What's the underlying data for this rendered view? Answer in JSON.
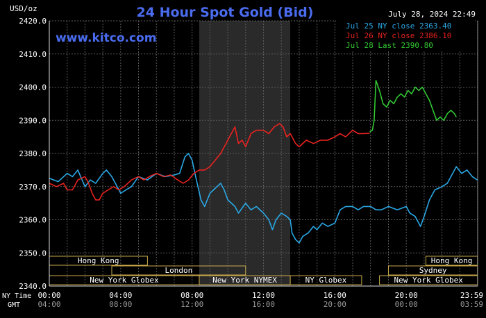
{
  "chart_data": {
    "type": "line",
    "title": "24 Hour Spot Gold (Bid)",
    "units_label": "USD/oz",
    "date_stamp": "July 28, 2024 22:49",
    "watermark": "www.kitco.com",
    "ylim": [
      2340,
      2420
    ],
    "y_ticks": [
      "2340.0",
      "2350.0",
      "2360.0",
      "2370.0",
      "2380.0",
      "2390.0",
      "2400.0",
      "2410.0",
      "2420.0"
    ],
    "grid": true,
    "legend_position": "top-right",
    "x_label_ny": "NY Time",
    "x_label_gmt": "GMT",
    "x_ticks_ny": [
      "00:00",
      "04:00",
      "08:00",
      "12:00",
      "16:00",
      "20:00",
      "23:59"
    ],
    "x_ticks_gmt": [
      "04:00",
      "08:00",
      "12:00",
      "16:00",
      "20:00",
      "00:00",
      "03:59"
    ],
    "nymex_shade_hours": [
      8.4,
      13.5
    ],
    "series": [
      {
        "name": "Jul 25 NY close 2363.40",
        "color": "#2aa8e6",
        "points": [
          [
            0,
            2372.5
          ],
          [
            0.5,
            2371.5
          ],
          [
            1,
            2374
          ],
          [
            1.3,
            2373
          ],
          [
            1.6,
            2375
          ],
          [
            2,
            2370
          ],
          [
            2.3,
            2372
          ],
          [
            2.6,
            2371
          ],
          [
            3,
            2374
          ],
          [
            3.2,
            2375
          ],
          [
            3.5,
            2373
          ],
          [
            3.8,
            2370
          ],
          [
            4,
            2368
          ],
          [
            4.3,
            2369
          ],
          [
            4.6,
            2370
          ],
          [
            5,
            2373
          ],
          [
            5.5,
            2372
          ],
          [
            6,
            2374
          ],
          [
            6.5,
            2373
          ],
          [
            7,
            2373.5
          ],
          [
            7.3,
            2374
          ],
          [
            7.6,
            2379
          ],
          [
            7.8,
            2380
          ],
          [
            8,
            2378
          ],
          [
            8.2,
            2373
          ],
          [
            8.5,
            2366
          ],
          [
            8.7,
            2364
          ],
          [
            9,
            2368
          ],
          [
            9.2,
            2369
          ],
          [
            9.6,
            2371
          ],
          [
            9.8,
            2369
          ],
          [
            10,
            2366
          ],
          [
            10.4,
            2364
          ],
          [
            10.6,
            2362
          ],
          [
            11,
            2365
          ],
          [
            11.3,
            2363
          ],
          [
            11.6,
            2364
          ],
          [
            12,
            2362
          ],
          [
            12.3,
            2360
          ],
          [
            12.5,
            2357
          ],
          [
            12.7,
            2360
          ],
          [
            13,
            2362
          ],
          [
            13.3,
            2361
          ],
          [
            13.5,
            2360
          ],
          [
            13.6,
            2356
          ],
          [
            13.8,
            2354
          ],
          [
            14,
            2353
          ],
          [
            14.2,
            2355
          ],
          [
            14.5,
            2356
          ],
          [
            14.8,
            2358
          ],
          [
            15,
            2357
          ],
          [
            15.3,
            2359
          ],
          [
            15.6,
            2358
          ],
          [
            16,
            2359
          ],
          [
            16.3,
            2363
          ],
          [
            16.6,
            2364
          ],
          [
            17,
            2364
          ],
          [
            17.3,
            2363
          ],
          [
            17.6,
            2364
          ],
          [
            18,
            2364
          ],
          [
            18.3,
            2363
          ],
          [
            18.6,
            2363
          ],
          [
            19,
            2364
          ],
          [
            19.5,
            2363
          ],
          [
            20,
            2364
          ],
          [
            20.2,
            2362
          ],
          [
            20.5,
            2361
          ],
          [
            20.8,
            2358
          ],
          [
            21,
            2361
          ],
          [
            21.3,
            2366
          ],
          [
            21.6,
            2369
          ],
          [
            22,
            2370
          ],
          [
            22.3,
            2371
          ],
          [
            22.6,
            2374
          ],
          [
            22.8,
            2376
          ],
          [
            23.1,
            2374
          ],
          [
            23.4,
            2375
          ],
          [
            23.7,
            2373
          ],
          [
            23.98,
            2372
          ]
        ]
      },
      {
        "name": "Jul 26 NY close 2386.10",
        "color": "#e8231f",
        "points": [
          [
            0,
            2371
          ],
          [
            0.4,
            2370
          ],
          [
            0.8,
            2371
          ],
          [
            1,
            2369
          ],
          [
            1.3,
            2369
          ],
          [
            1.6,
            2372
          ],
          [
            2,
            2373
          ],
          [
            2.2,
            2371
          ],
          [
            2.4,
            2368
          ],
          [
            2.6,
            2366
          ],
          [
            2.8,
            2366
          ],
          [
            3,
            2368
          ],
          [
            3.3,
            2369
          ],
          [
            3.6,
            2370
          ],
          [
            3.9,
            2369
          ],
          [
            4.2,
            2370
          ],
          [
            4.6,
            2372
          ],
          [
            5,
            2373
          ],
          [
            5.3,
            2372
          ],
          [
            5.6,
            2373
          ],
          [
            6,
            2374
          ],
          [
            6.4,
            2373
          ],
          [
            6.8,
            2373.5
          ],
          [
            7.2,
            2372
          ],
          [
            7.5,
            2371
          ],
          [
            7.8,
            2372
          ],
          [
            8.1,
            2374
          ],
          [
            8.4,
            2375
          ],
          [
            8.7,
            2375
          ],
          [
            9,
            2376
          ],
          [
            9.3,
            2378
          ],
          [
            9.6,
            2380
          ],
          [
            9.9,
            2383
          ],
          [
            10.2,
            2386
          ],
          [
            10.4,
            2388
          ],
          [
            10.6,
            2383
          ],
          [
            10.8,
            2384
          ],
          [
            11,
            2382
          ],
          [
            11.3,
            2386
          ],
          [
            11.6,
            2387
          ],
          [
            12,
            2387
          ],
          [
            12.3,
            2386
          ],
          [
            12.6,
            2388
          ],
          [
            12.9,
            2389
          ],
          [
            13.1,
            2388
          ],
          [
            13.3,
            2385
          ],
          [
            13.5,
            2386
          ],
          [
            13.8,
            2383
          ],
          [
            14,
            2382
          ],
          [
            14.4,
            2384
          ],
          [
            14.8,
            2383
          ],
          [
            15.2,
            2384
          ],
          [
            15.6,
            2384
          ],
          [
            16,
            2385
          ],
          [
            16.3,
            2386
          ],
          [
            16.6,
            2385
          ],
          [
            17,
            2387
          ],
          [
            17.3,
            2386
          ],
          [
            17.6,
            2386
          ],
          [
            17.95,
            2386.1
          ]
        ]
      },
      {
        "name": "Jul 28 Last 2390.80",
        "color": "#32c832",
        "points": [
          [
            17.95,
            2386.5
          ],
          [
            18.1,
            2387
          ],
          [
            18.2,
            2390
          ],
          [
            18.3,
            2402
          ],
          [
            18.5,
            2399
          ],
          [
            18.7,
            2395
          ],
          [
            18.9,
            2394
          ],
          [
            19.1,
            2396
          ],
          [
            19.3,
            2395
          ],
          [
            19.5,
            2397
          ],
          [
            19.7,
            2398
          ],
          [
            19.9,
            2397
          ],
          [
            20.1,
            2399
          ],
          [
            20.3,
            2398
          ],
          [
            20.5,
            2400
          ],
          [
            20.7,
            2399
          ],
          [
            20.9,
            2400
          ],
          [
            21.1,
            2398
          ],
          [
            21.3,
            2396
          ],
          [
            21.5,
            2393
          ],
          [
            21.7,
            2390
          ],
          [
            21.9,
            2391
          ],
          [
            22.1,
            2390
          ],
          [
            22.3,
            2392
          ],
          [
            22.5,
            2393
          ],
          [
            22.7,
            2392
          ],
          [
            22.8,
            2391
          ]
        ]
      }
    ],
    "sessions": [
      {
        "label": "Hong Kong",
        "start": 0,
        "end": 5.5,
        "row": 0
      },
      {
        "label": "London",
        "start": 3.5,
        "end": 11.0,
        "row": 1
      },
      {
        "label": "New York Globex",
        "start": 0,
        "end": 8.4,
        "row": 2
      },
      {
        "label": "New York NYMEX",
        "start": 8.4,
        "end": 13.5,
        "row": 2
      },
      {
        "label": "NY Globex",
        "start": 13.5,
        "end": 17.5,
        "row": 2
      },
      {
        "label": "Hong Kong",
        "start": 21.1,
        "end": 23.99,
        "row": 0
      },
      {
        "label": "Sydney",
        "start": 19.0,
        "end": 23.99,
        "row": 1
      },
      {
        "label": "New York Globex",
        "start": 18.5,
        "end": 23.99,
        "row": 2
      }
    ]
  }
}
